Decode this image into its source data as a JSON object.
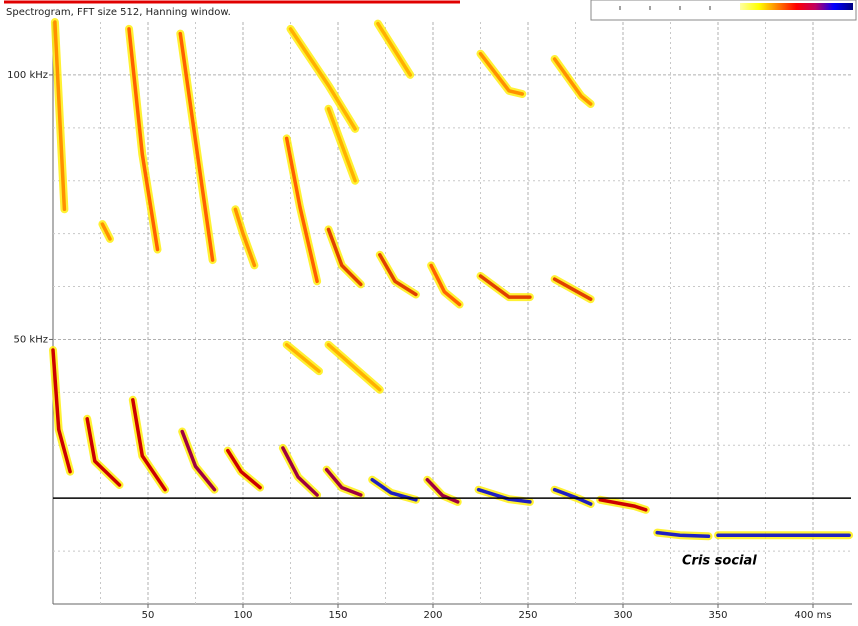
{
  "chart_data": {
    "type": "spectrogram",
    "title": "Spectrogram, FFT size 512, Hanning window.",
    "annotation": "Cris social",
    "xlim": [
      0,
      420
    ],
    "ylim": [
      0,
      110
    ],
    "xticks": [
      50,
      100,
      150,
      200,
      250,
      300,
      350,
      {
        "value": 400,
        "label": "400 ms"
      }
    ],
    "minor_xticks": [
      25,
      75,
      125,
      175,
      225,
      275,
      325,
      375
    ],
    "yticks": [
      {
        "value": 50,
        "label": "50 kHz"
      },
      {
        "value": 100,
        "label": "100 kHz"
      }
    ],
    "minor_yticks": [
      10,
      20,
      30,
      40,
      60,
      70,
      80,
      90
    ],
    "grid": true,
    "reference_line": 20,
    "colormap": [
      "#ffffa0",
      "#ffff00",
      "#ff8000",
      "#ff0000",
      "#c00060",
      "#0000ff",
      "#000080"
    ],
    "traces": [
      {
        "x": [
          0,
          3,
          9
        ],
        "y": [
          48,
          33,
          25
        ],
        "color": "#cc0000"
      },
      {
        "x": [
          18,
          22,
          35
        ],
        "y": [
          35,
          27,
          22.5
        ],
        "color": "#cc0000"
      },
      {
        "x": [
          42,
          47,
          59
        ],
        "y": [
          38.6,
          28,
          21.6
        ],
        "color": "#cc0000"
      },
      {
        "x": [
          68,
          75,
          85
        ],
        "y": [
          32.6,
          26,
          21.6
        ],
        "color": "#a00040"
      },
      {
        "x": [
          92,
          99,
          109
        ],
        "y": [
          29,
          25,
          22
        ],
        "color": "#cc0000"
      },
      {
        "x": [
          121,
          129,
          139
        ],
        "y": [
          29.5,
          24,
          20.6
        ],
        "color": "#a00040"
      },
      {
        "x": [
          144,
          152,
          162
        ],
        "y": [
          25.4,
          22,
          20.6
        ],
        "color": "#a00040"
      },
      {
        "x": [
          168,
          178,
          191
        ],
        "y": [
          23.5,
          21,
          19.7
        ],
        "color": "#2020c0"
      },
      {
        "x": [
          197,
          205,
          213
        ],
        "y": [
          23.5,
          20.5,
          19.3
        ],
        "color": "#a00040"
      },
      {
        "x": [
          224,
          240,
          251
        ],
        "y": [
          21.6,
          19.8,
          19.3
        ],
        "color": "#2020c0"
      },
      {
        "x": [
          264,
          276,
          283
        ],
        "y": [
          21.6,
          20,
          18.9
        ],
        "color": "#2020c0"
      },
      {
        "x": [
          288,
          306,
          312
        ],
        "y": [
          19.7,
          18.5,
          17.8
        ],
        "color": "#cc0000"
      },
      {
        "x": [
          318,
          330,
          345
        ],
        "y": [
          13.5,
          13,
          12.8
        ],
        "color": "#2020c0"
      },
      {
        "x": [
          350,
          385,
          419
        ],
        "y": [
          13,
          13,
          13
        ],
        "color": "#2020c0"
      },
      {
        "x": [
          1,
          6
        ],
        "y": [
          110,
          74.6
        ],
        "color": "#ff9000"
      },
      {
        "x": [
          26,
          30
        ],
        "y": [
          71.8,
          69
        ],
        "color": "#ff9000"
      },
      {
        "x": [
          40,
          47,
          55
        ],
        "y": [
          108.7,
          85,
          67
        ],
        "color": "#ff6000"
      },
      {
        "x": [
          67,
          78,
          84
        ],
        "y": [
          107.8,
          80,
          65
        ],
        "color": "#ff6000"
      },
      {
        "x": [
          96,
          100,
          106
        ],
        "y": [
          74.6,
          70,
          64
        ],
        "color": "#ff9000"
      },
      {
        "x": [
          123,
          130,
          139
        ],
        "y": [
          88,
          75,
          61
        ],
        "color": "#ff6000"
      },
      {
        "x": [
          145,
          152,
          162
        ],
        "y": [
          70.8,
          64,
          60.4
        ],
        "color": "#e04000"
      },
      {
        "x": [
          172,
          180,
          191
        ],
        "y": [
          66,
          61,
          58.5
        ],
        "color": "#e04000"
      },
      {
        "x": [
          199,
          206,
          214
        ],
        "y": [
          64,
          59,
          56.6
        ],
        "color": "#ff6000"
      },
      {
        "x": [
          225,
          240,
          251
        ],
        "y": [
          62,
          58,
          58
        ],
        "color": "#e04000"
      },
      {
        "x": [
          264,
          276,
          283
        ],
        "y": [
          61.4,
          59,
          57.6
        ],
        "color": "#e04000"
      },
      {
        "x": [
          125,
          145,
          159
        ],
        "y": [
          108.7,
          98,
          89.8
        ],
        "color": "#ffb000"
      },
      {
        "x": [
          145,
          159
        ],
        "y": [
          93.6,
          80
        ],
        "color": "#ffb000"
      },
      {
        "x": [
          171,
          188
        ],
        "y": [
          109.7,
          100
        ],
        "color": "#ffb000"
      },
      {
        "x": [
          225,
          240,
          247
        ],
        "y": [
          104,
          97,
          96.4
        ],
        "color": "#ff9000"
      },
      {
        "x": [
          264,
          278,
          283
        ],
        "y": [
          103,
          96,
          94.5
        ],
        "color": "#ff9000"
      },
      {
        "x": [
          123,
          140
        ],
        "y": [
          49,
          44
        ],
        "color": "#ffb000"
      },
      {
        "x": [
          145,
          172
        ],
        "y": [
          49,
          40.5
        ],
        "color": "#ffb000"
      }
    ]
  }
}
